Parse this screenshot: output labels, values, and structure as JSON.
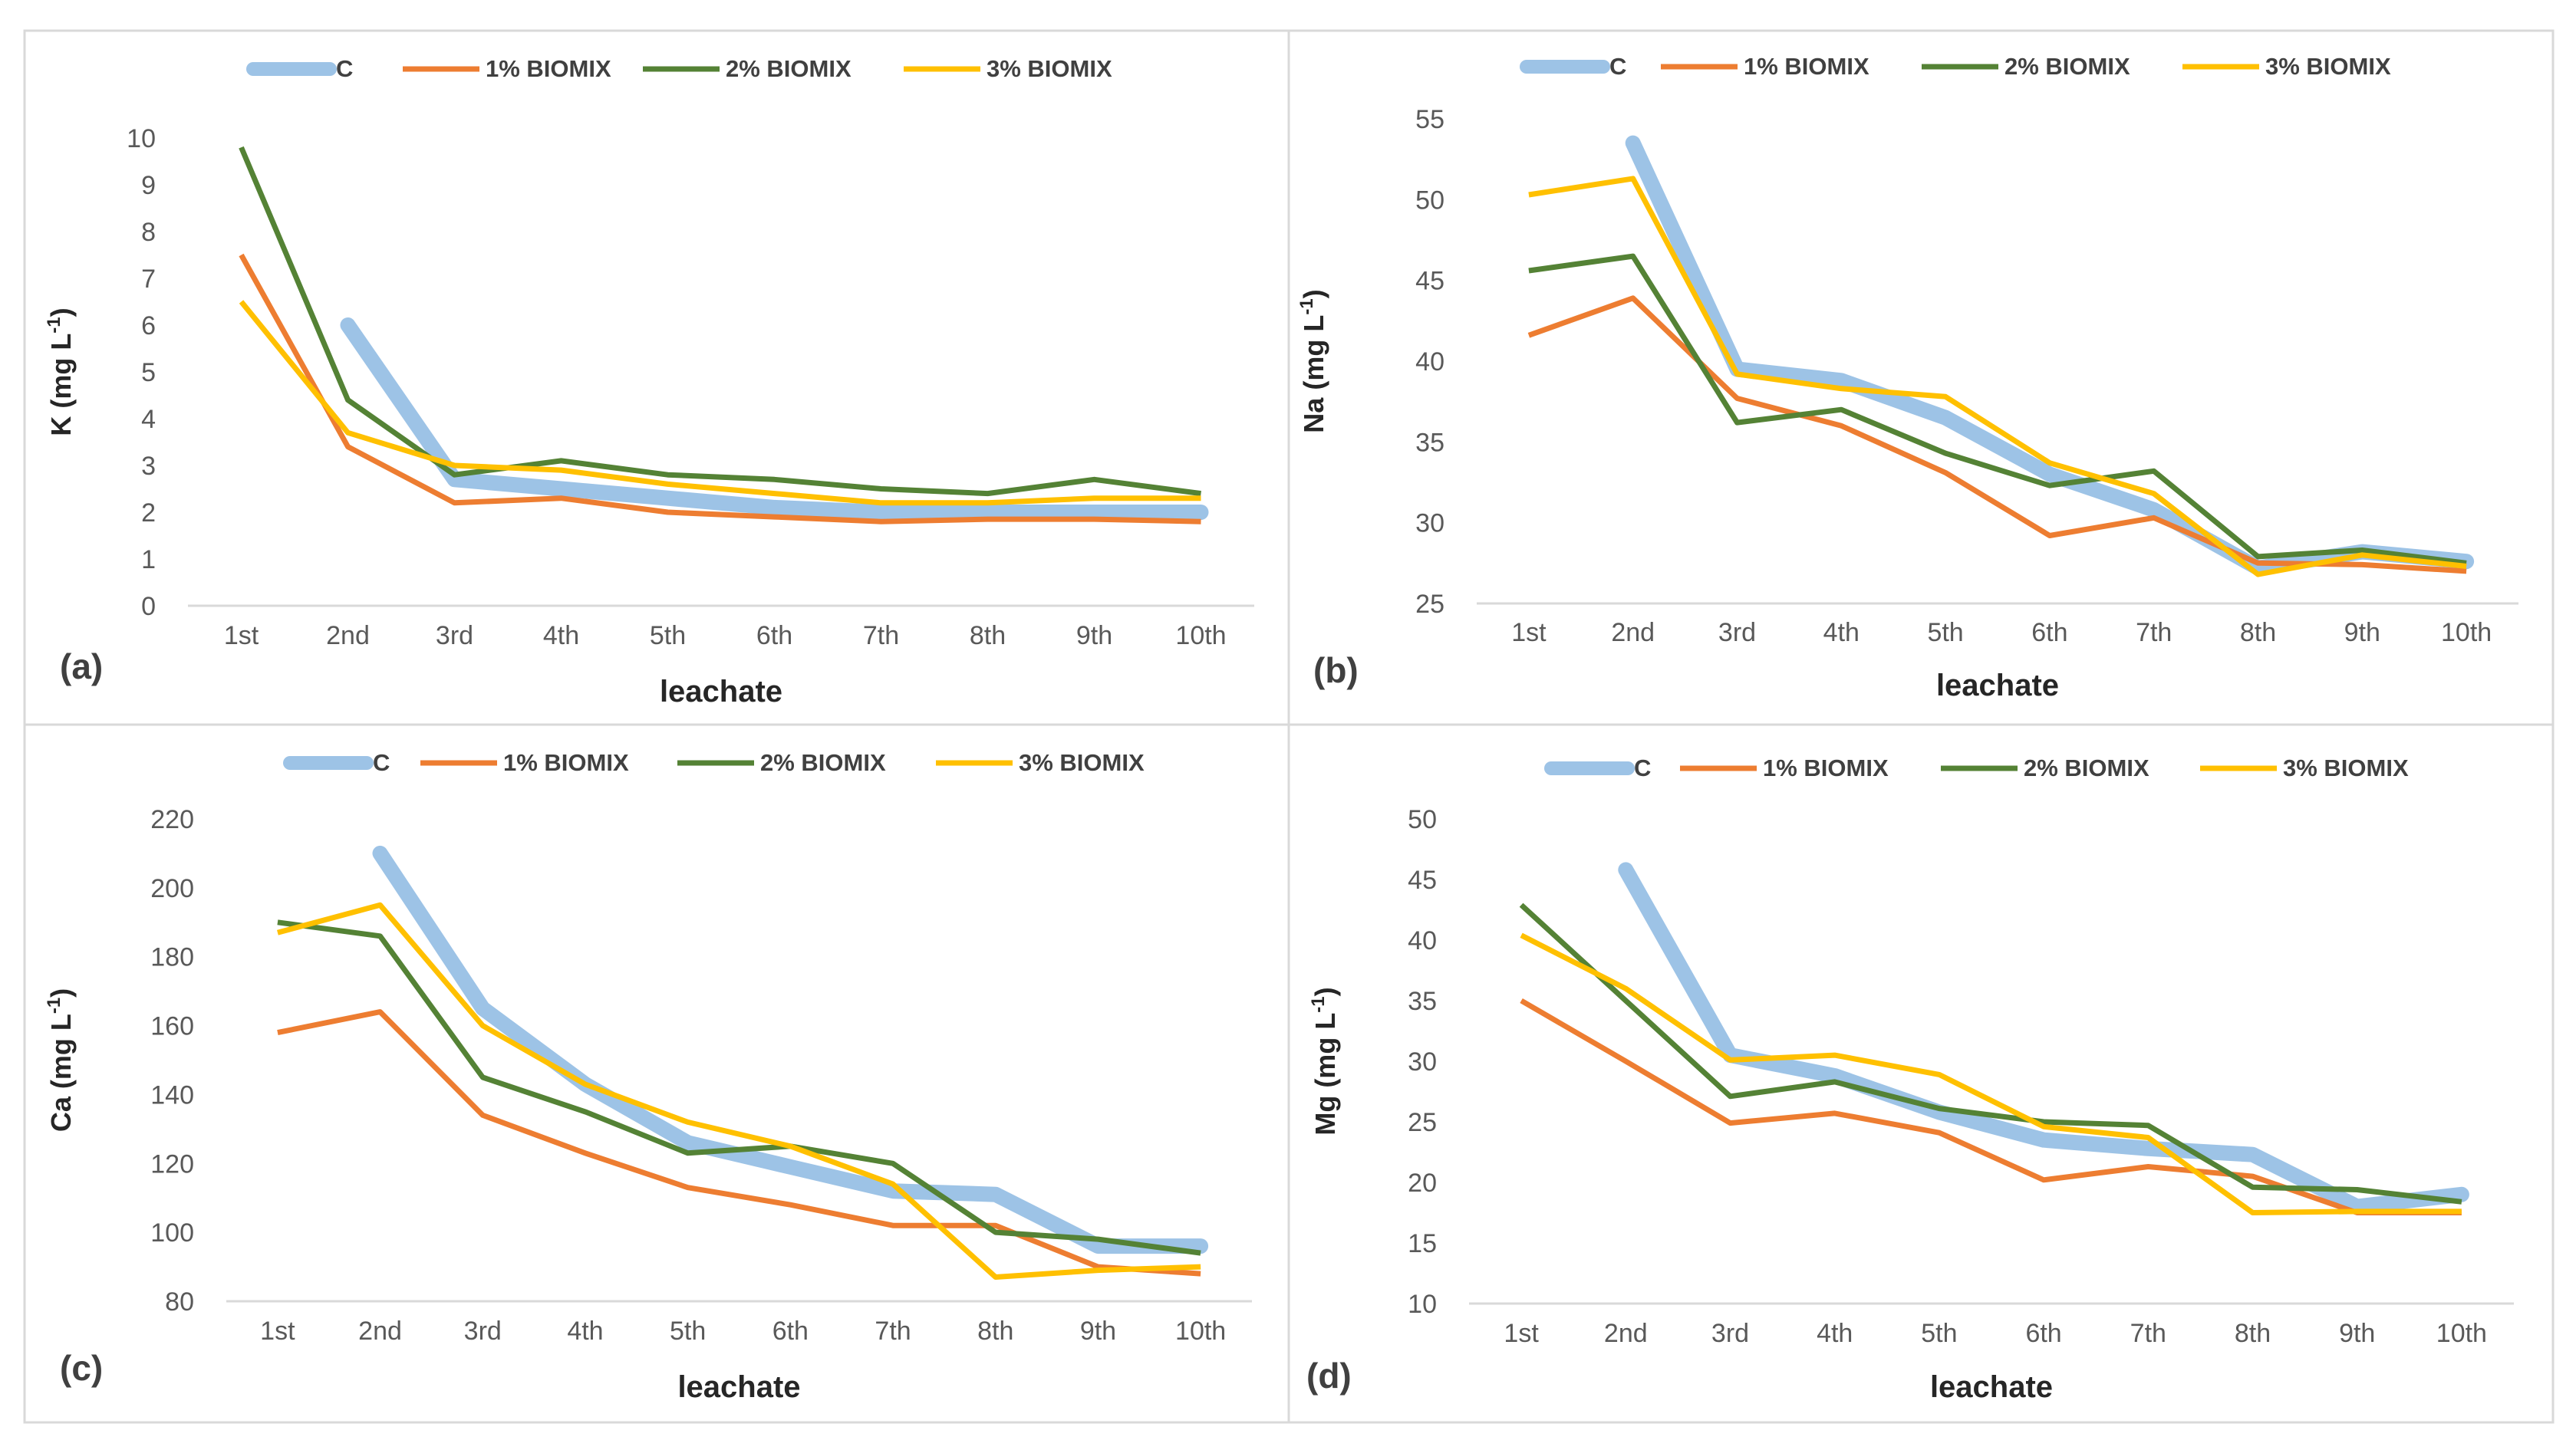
{
  "series_styles": [
    {
      "key": "C",
      "color": "#9dc3e6",
      "width": 20
    },
    {
      "key": "1% BIOMIX",
      "color": "#ed7d31",
      "width": 7
    },
    {
      "key": "2% BIOMIX",
      "color": "#548235",
      "width": 7
    },
    {
      "key": "3% BIOMIX",
      "color": "#ffc000",
      "width": 7
    }
  ],
  "chart_data": [
    {
      "panel": "(a)",
      "type": "line",
      "ylabel_main": "K (mg L",
      "ylabel_sup": "-1",
      "ylabel_close": ")",
      "xlabel": "leachate",
      "categories": [
        "1st",
        "2nd",
        "3rd",
        "4th",
        "5th",
        "6th",
        "7th",
        "8th",
        "9th",
        "10th"
      ],
      "ylim": [
        0,
        10
      ],
      "ytick_step": 1,
      "yticks": [
        "0",
        "1",
        "2",
        "3",
        "4",
        "5",
        "6",
        "7",
        "8",
        "9",
        "10"
      ],
      "legend": [
        "C",
        "1% BIOMIX",
        "2% BIOMIX",
        "3% BIOMIX"
      ],
      "series": [
        {
          "name": "C",
          "values": [
            null,
            6.0,
            2.7,
            2.5,
            2.3,
            2.1,
            2.0,
            2.0,
            2.0,
            2.0
          ]
        },
        {
          "name": "1% BIOMIX",
          "values": [
            7.5,
            3.4,
            2.2,
            2.3,
            2.0,
            1.9,
            1.8,
            1.85,
            1.85,
            1.8
          ]
        },
        {
          "name": "2% BIOMIX",
          "values": [
            9.8,
            4.4,
            2.8,
            3.1,
            2.8,
            2.7,
            2.5,
            2.4,
            2.7,
            2.4
          ]
        },
        {
          "name": "3% BIOMIX",
          "values": [
            6.5,
            3.7,
            3.0,
            2.9,
            2.6,
            2.4,
            2.2,
            2.2,
            2.3,
            2.3
          ]
        }
      ]
    },
    {
      "panel": "(b)",
      "type": "line",
      "ylabel_main": "Na (mg L",
      "ylabel_sup": "-1",
      "ylabel_close": ")",
      "xlabel": "leachate",
      "categories": [
        "1st",
        "2nd",
        "3rd",
        "4th",
        "5th",
        "6th",
        "7th",
        "8th",
        "9th",
        "10th"
      ],
      "ylim": [
        25,
        55
      ],
      "ytick_step": 5,
      "yticks": [
        "25",
        "30",
        "35",
        "40",
        "45",
        "50",
        "55"
      ],
      "legend": [
        "C",
        "1% BIOMIX",
        "2% BIOMIX",
        "3% BIOMIX"
      ],
      "series": [
        {
          "name": "C",
          "values": [
            null,
            53.5,
            39.5,
            38.8,
            36.5,
            33.0,
            30.8,
            27.2,
            28.2,
            27.6
          ]
        },
        {
          "name": "1% BIOMIX",
          "values": [
            41.6,
            43.9,
            37.7,
            36.0,
            33.1,
            29.2,
            30.3,
            27.5,
            27.4,
            27.0
          ]
        },
        {
          "name": "2% BIOMIX",
          "values": [
            45.6,
            46.5,
            36.2,
            37.0,
            34.3,
            32.3,
            33.2,
            27.9,
            28.3,
            27.5
          ]
        },
        {
          "name": "3% BIOMIX",
          "values": [
            50.3,
            51.3,
            39.2,
            38.3,
            37.8,
            33.7,
            31.8,
            26.8,
            28.0,
            27.3
          ]
        }
      ]
    },
    {
      "panel": "(c)",
      "type": "line",
      "ylabel_main": "Ca (mg L",
      "ylabel_sup": "-1",
      "ylabel_close": ")",
      "xlabel": "leachate",
      "categories": [
        "1st",
        "2nd",
        "3rd",
        "4th",
        "5th",
        "6th",
        "7th",
        "8th",
        "9th",
        "10th"
      ],
      "ylim": [
        80,
        220
      ],
      "ytick_step": 20,
      "yticks": [
        "80",
        "100",
        "120",
        "140",
        "160",
        "180",
        "200",
        "220"
      ],
      "legend": [
        "C",
        "1% BIOMIX",
        "2% BIOMIX",
        "3% BIOMIX"
      ],
      "series": [
        {
          "name": "C",
          "values": [
            null,
            210,
            165,
            143,
            126,
            119,
            112,
            111,
            96,
            96
          ]
        },
        {
          "name": "1% BIOMIX",
          "values": [
            158,
            164,
            134,
            123,
            113,
            108,
            102,
            102,
            90,
            88
          ]
        },
        {
          "name": "2% BIOMIX",
          "values": [
            190,
            186,
            145,
            135,
            123,
            125,
            120,
            100,
            98,
            94
          ]
        },
        {
          "name": "3% BIOMIX",
          "values": [
            187,
            195,
            160,
            143,
            132,
            125,
            114,
            87,
            89,
            90
          ]
        }
      ]
    },
    {
      "panel": "(d)",
      "type": "line",
      "ylabel_main": "Mg (mg L",
      "ylabel_sup": "-1",
      "ylabel_close": ")",
      "xlabel": "leachate",
      "categories": [
        "1st",
        "2nd",
        "3rd",
        "4th",
        "5th",
        "6th",
        "7th",
        "8th",
        "9th",
        "10th"
      ],
      "ylim": [
        10,
        50
      ],
      "ytick_step": 5,
      "yticks": [
        "10",
        "15",
        "20",
        "25",
        "30",
        "35",
        "40",
        "45",
        "50"
      ],
      "legend": [
        "C",
        "1% BIOMIX",
        "2% BIOMIX",
        "3% BIOMIX"
      ],
      "series": [
        {
          "name": "C",
          "values": [
            null,
            45.8,
            30.5,
            28.8,
            25.8,
            23.5,
            22.8,
            22.3,
            18.0,
            19.0
          ]
        },
        {
          "name": "1% BIOMIX",
          "values": [
            35.0,
            30.0,
            24.9,
            25.7,
            24.1,
            20.2,
            21.3,
            20.5,
            17.5,
            17.5
          ]
        },
        {
          "name": "2% BIOMIX",
          "values": [
            42.9,
            35.0,
            27.1,
            28.3,
            26.1,
            25.0,
            24.7,
            19.6,
            19.4,
            18.4
          ]
        },
        {
          "name": "3% BIOMIX",
          "values": [
            40.4,
            36.0,
            30.1,
            30.5,
            28.9,
            24.6,
            23.7,
            17.5,
            17.6,
            17.6
          ]
        }
      ]
    }
  ]
}
